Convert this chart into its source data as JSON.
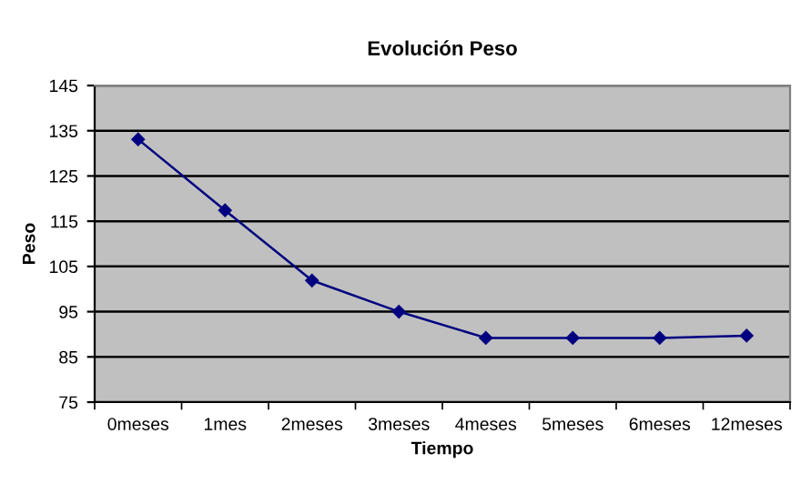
{
  "chart_data": {
    "type": "line",
    "title": "Evolución Peso",
    "xlabel": "Tiempo",
    "ylabel": "Peso",
    "categories": [
      "0meses",
      "1mes",
      "2meses",
      "3meses",
      "4meses",
      "5meses",
      "6meses",
      "12meses"
    ],
    "series": [
      {
        "color": "#000080",
        "values": [
          133.1,
          117.4,
          101.9,
          95,
          89.2,
          89.2,
          89.2,
          89.7
        ]
      }
    ],
    "ylim": [
      75,
      145
    ],
    "yticks": [
      75,
      85,
      95,
      105,
      115,
      125,
      135,
      145
    ],
    "grid": "y",
    "marker": "diamond",
    "line_style": "solid"
  }
}
